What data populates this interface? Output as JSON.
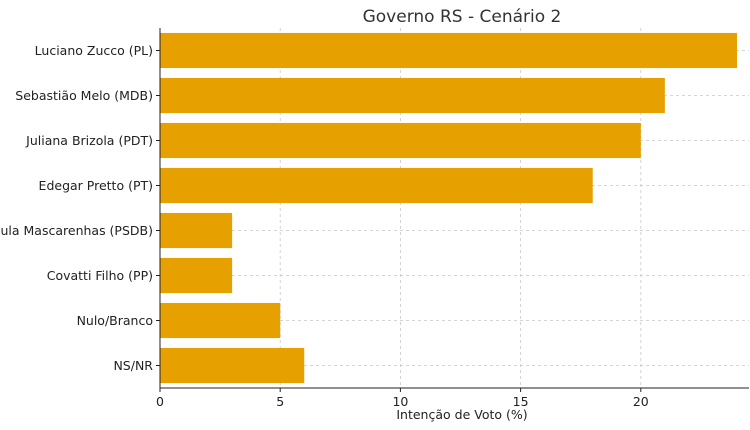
{
  "chart_data": {
    "type": "bar",
    "orientation": "horizontal",
    "title": "Governo RS - Cenário 2",
    "xlabel": "Intenção de Voto (%)",
    "ylabel": "",
    "categories": [
      "Luciano Zucco (PL)",
      "Sebastião Melo (MDB)",
      "Juliana Brizola (PDT)",
      "Edegar Pretto (PT)",
      "Paula Mascarenhas (PSDB)",
      "Covatti Filho (PP)",
      "Nulo/Branco",
      "NS/NR"
    ],
    "values": [
      24,
      21,
      20,
      18,
      3,
      3,
      5,
      6
    ],
    "xlim": [
      0,
      24.5
    ],
    "xticks": [
      "0",
      "5",
      "10",
      "15",
      "20"
    ],
    "grid": true,
    "bar_color": "#E6A000"
  }
}
